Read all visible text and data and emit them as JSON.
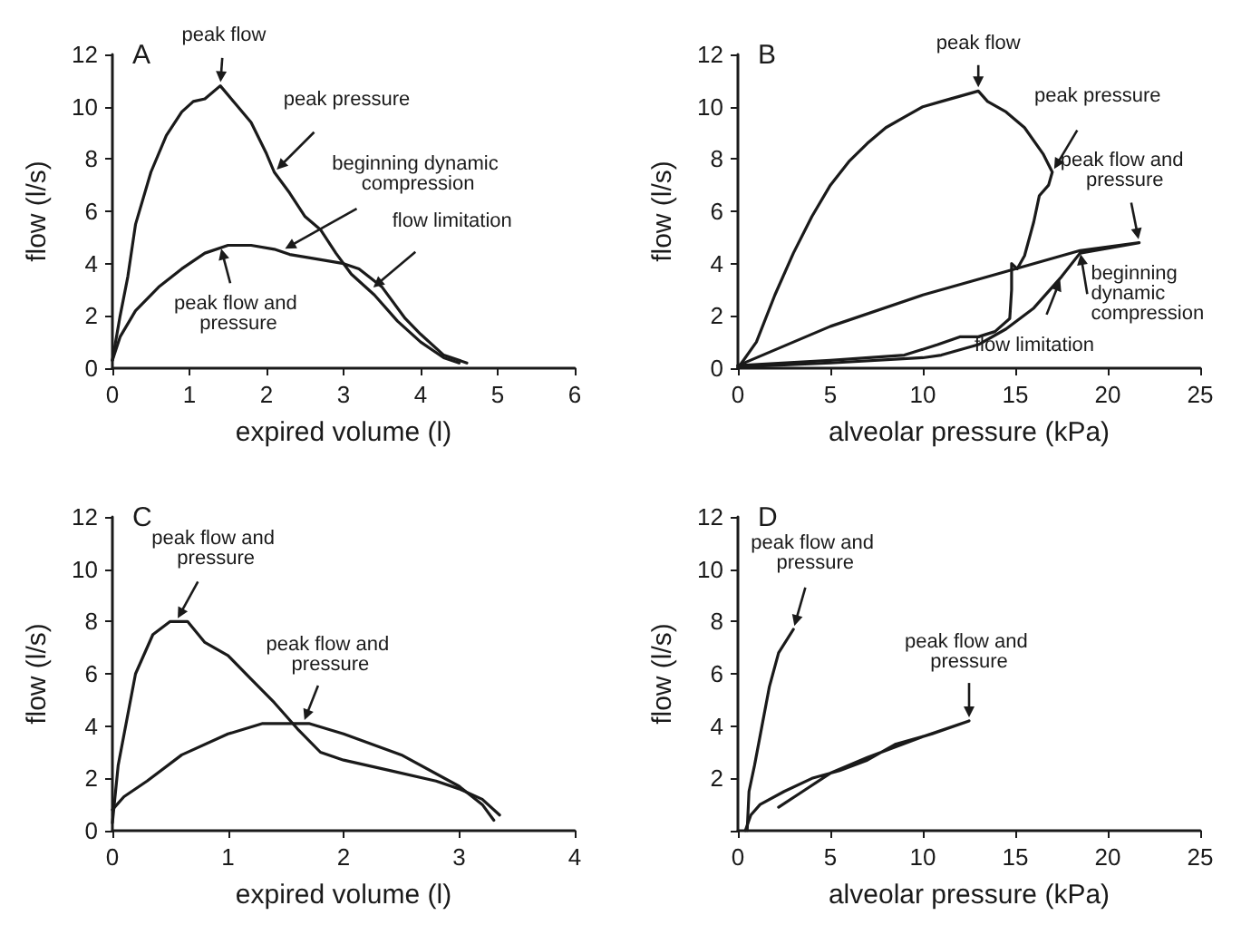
{
  "chart_data": [
    {
      "type": "line",
      "title": "A",
      "xlabel": "expired volume (l)",
      "ylabel": "flow (l/s)",
      "xlim": [
        0,
        6
      ],
      "xticks": [
        0,
        1,
        2,
        3,
        4,
        5,
        6
      ],
      "ylim": [
        0,
        12
      ],
      "yticks": [
        0,
        2,
        4,
        6,
        8,
        10,
        12
      ],
      "marker": "none",
      "line_style": "solid",
      "series": [
        {
          "color": "#1a1a1a",
          "x": [
            0,
            0.1,
            0.2,
            0.3,
            0.5,
            0.7,
            0.9,
            1.05,
            1.2,
            1.4,
            1.6,
            1.8,
            2.0,
            2.1,
            2.3,
            2.5,
            2.7,
            2.9,
            3.1,
            3.4,
            3.7,
            4.0,
            4.3,
            4.5
          ],
          "values": [
            0.3,
            2,
            3.5,
            5.5,
            7.5,
            8.9,
            9.8,
            10.2,
            10.3,
            10.8,
            10.1,
            9.4,
            8.2,
            7.5,
            6.7,
            5.8,
            5.3,
            4.4,
            3.6,
            2.8,
            1.8,
            1.0,
            0.4,
            0.2
          ]
        },
        {
          "color": "#1a1a1a",
          "x": [
            0,
            0.1,
            0.3,
            0.6,
            0.9,
            1.2,
            1.5,
            1.8,
            2.1,
            2.3,
            2.6,
            3.0,
            3.2,
            3.5,
            3.8,
            4.0,
            4.3,
            4.6
          ],
          "values": [
            0.3,
            1.2,
            2.2,
            3.1,
            3.8,
            4.4,
            4.7,
            4.7,
            4.55,
            4.35,
            4.2,
            4.0,
            3.8,
            3.1,
            1.9,
            1.3,
            0.5,
            0.2
          ]
        }
      ],
      "annotations": [
        {
          "text": "peak flow",
          "x": 1.4,
          "y": 10.8
        },
        {
          "text": "peak pressure",
          "x": 2.1,
          "y": 7.5
        },
        {
          "text": "beginning dynamic compression",
          "x": 2.2,
          "y": 4.5
        },
        {
          "text": "flow limitation",
          "x": 3.35,
          "y": 3.0
        },
        {
          "text": "peak flow and pressure",
          "x": 1.4,
          "y": 4.7
        }
      ]
    },
    {
      "type": "line",
      "title": "B",
      "xlabel": "alveolar pressure (kPa)",
      "ylabel": "flow (l/s)",
      "xlim": [
        0,
        25
      ],
      "xticks": [
        0,
        5,
        10,
        15,
        20,
        25
      ],
      "ylim": [
        0,
        12
      ],
      "yticks": [
        0,
        2,
        4,
        6,
        8,
        10,
        12
      ],
      "marker": "none",
      "line_style": "solid",
      "series": [
        {
          "color": "#1a1a1a",
          "x": [
            0,
            1,
            2,
            3,
            4,
            5,
            6,
            7,
            8,
            9,
            10,
            11,
            12,
            13,
            13.5,
            14.5,
            15.5,
            16.5,
            17,
            16.8,
            16.3,
            16.0,
            15.5,
            15.1,
            14.8,
            14.8,
            14.7,
            13.9,
            13,
            12,
            10.8,
            9,
            5,
            0
          ],
          "values": [
            0,
            1.0,
            2.8,
            4.4,
            5.8,
            7.0,
            7.9,
            8.6,
            9.2,
            9.6,
            10.0,
            10.2,
            10.4,
            10.6,
            10.2,
            9.8,
            9.2,
            8.2,
            7.5,
            7.0,
            6.6,
            5.6,
            4.3,
            3.8,
            4.0,
            3.0,
            1.9,
            1.4,
            1.2,
            1.2,
            0.9,
            0.5,
            0.3,
            0.1
          ]
        },
        {
          "color": "#1a1a1a",
          "x": [
            0,
            5,
            10,
            15,
            18.5,
            21.7,
            18.5,
            17.5,
            16,
            14.5,
            13,
            11,
            10,
            5,
            0
          ],
          "values": [
            0.1,
            1.6,
            2.8,
            3.8,
            4.5,
            4.8,
            4.4,
            3.5,
            2.3,
            1.5,
            0.9,
            0.5,
            0.4,
            0.2,
            0.05
          ]
        }
      ],
      "annotations": [
        {
          "text": "peak flow",
          "x": 13,
          "y": 10.6
        },
        {
          "text": "peak pressure",
          "x": 17,
          "y": 7.5
        },
        {
          "text": "peak flow and pressure",
          "x": 21.7,
          "y": 4.8
        },
        {
          "text": "beginning dynamic compression",
          "x": 18.5,
          "y": 4.5
        },
        {
          "text": "flow limitation",
          "x": 17.5,
          "y": 3.5
        }
      ]
    },
    {
      "type": "line",
      "title": "C",
      "xlabel": "expired volume (l)",
      "ylabel": "flow (l/s)",
      "xlim": [
        0,
        4
      ],
      "xticks": [
        0,
        1,
        2,
        3,
        4
      ],
      "ylim": [
        0,
        12
      ],
      "yticks": [
        0,
        2,
        4,
        6,
        8,
        10,
        12
      ],
      "marker": "none",
      "line_style": "solid",
      "series": [
        {
          "color": "#1a1a1a",
          "x": [
            0,
            0.05,
            0.2,
            0.35,
            0.5,
            0.65,
            0.8,
            1.0,
            1.2,
            1.4,
            1.6,
            1.8,
            2.0,
            2.4,
            2.8,
            3.0,
            3.2,
            3.35
          ],
          "values": [
            0.3,
            2.5,
            6,
            7.5,
            8.0,
            8.0,
            7.2,
            6.7,
            5.8,
            4.9,
            3.9,
            3.0,
            2.7,
            2.3,
            1.9,
            1.6,
            1.2,
            0.6
          ]
        },
        {
          "color": "#1a1a1a",
          "x": [
            0,
            0.1,
            0.3,
            0.6,
            1.0,
            1.3,
            1.7,
            2.0,
            2.5,
            3.0,
            3.2,
            3.3
          ],
          "values": [
            0.8,
            1.3,
            1.9,
            2.9,
            3.7,
            4.1,
            4.1,
            3.7,
            2.9,
            1.7,
            1.0,
            0.4
          ]
        }
      ],
      "annotations": [
        {
          "text": "peak flow and pressure",
          "x": 0.55,
          "y": 8.0
        },
        {
          "text": "peak flow and pressure",
          "x": 1.65,
          "y": 4.1
        }
      ]
    },
    {
      "type": "line",
      "title": "D",
      "xlabel": "alveolar pressure (kPa)",
      "ylabel": "flow (l/s)",
      "xlim": [
        0,
        25
      ],
      "xticks": [
        0,
        5,
        10,
        15,
        20,
        25
      ],
      "ylim": [
        0,
        12
      ],
      "yticks": [
        {
          "value": 0,
          "label": null
        },
        2,
        4,
        6,
        8,
        10,
        12
      ],
      "marker": "none",
      "line_style": "solid",
      "series": [
        {
          "color": "#1a1a1a",
          "x": [
            0.5,
            0.6,
            0.9,
            1.3,
            1.7,
            2.2,
            3.0
          ],
          "values": [
            0,
            1.5,
            2.5,
            4,
            5.5,
            6.8,
            7.7
          ]
        },
        {
          "color": "#1a1a1a",
          "x": [
            0.4,
            0.7,
            1.2,
            2.5,
            4,
            5.5,
            7,
            8.5,
            10.5,
            12.5,
            10,
            7,
            5,
            3.5,
            2.2
          ],
          "values": [
            0,
            0.6,
            1.0,
            1.5,
            2.0,
            2.3,
            2.7,
            3.3,
            3.7,
            4.2,
            3.6,
            2.8,
            2.2,
            1.5,
            0.9
          ]
        }
      ],
      "annotations": [
        {
          "text": "peak flow and pressure",
          "x": 3.0,
          "y": 7.7
        },
        {
          "text": "peak flow and pressure",
          "x": 12.5,
          "y": 4.2
        }
      ]
    }
  ]
}
